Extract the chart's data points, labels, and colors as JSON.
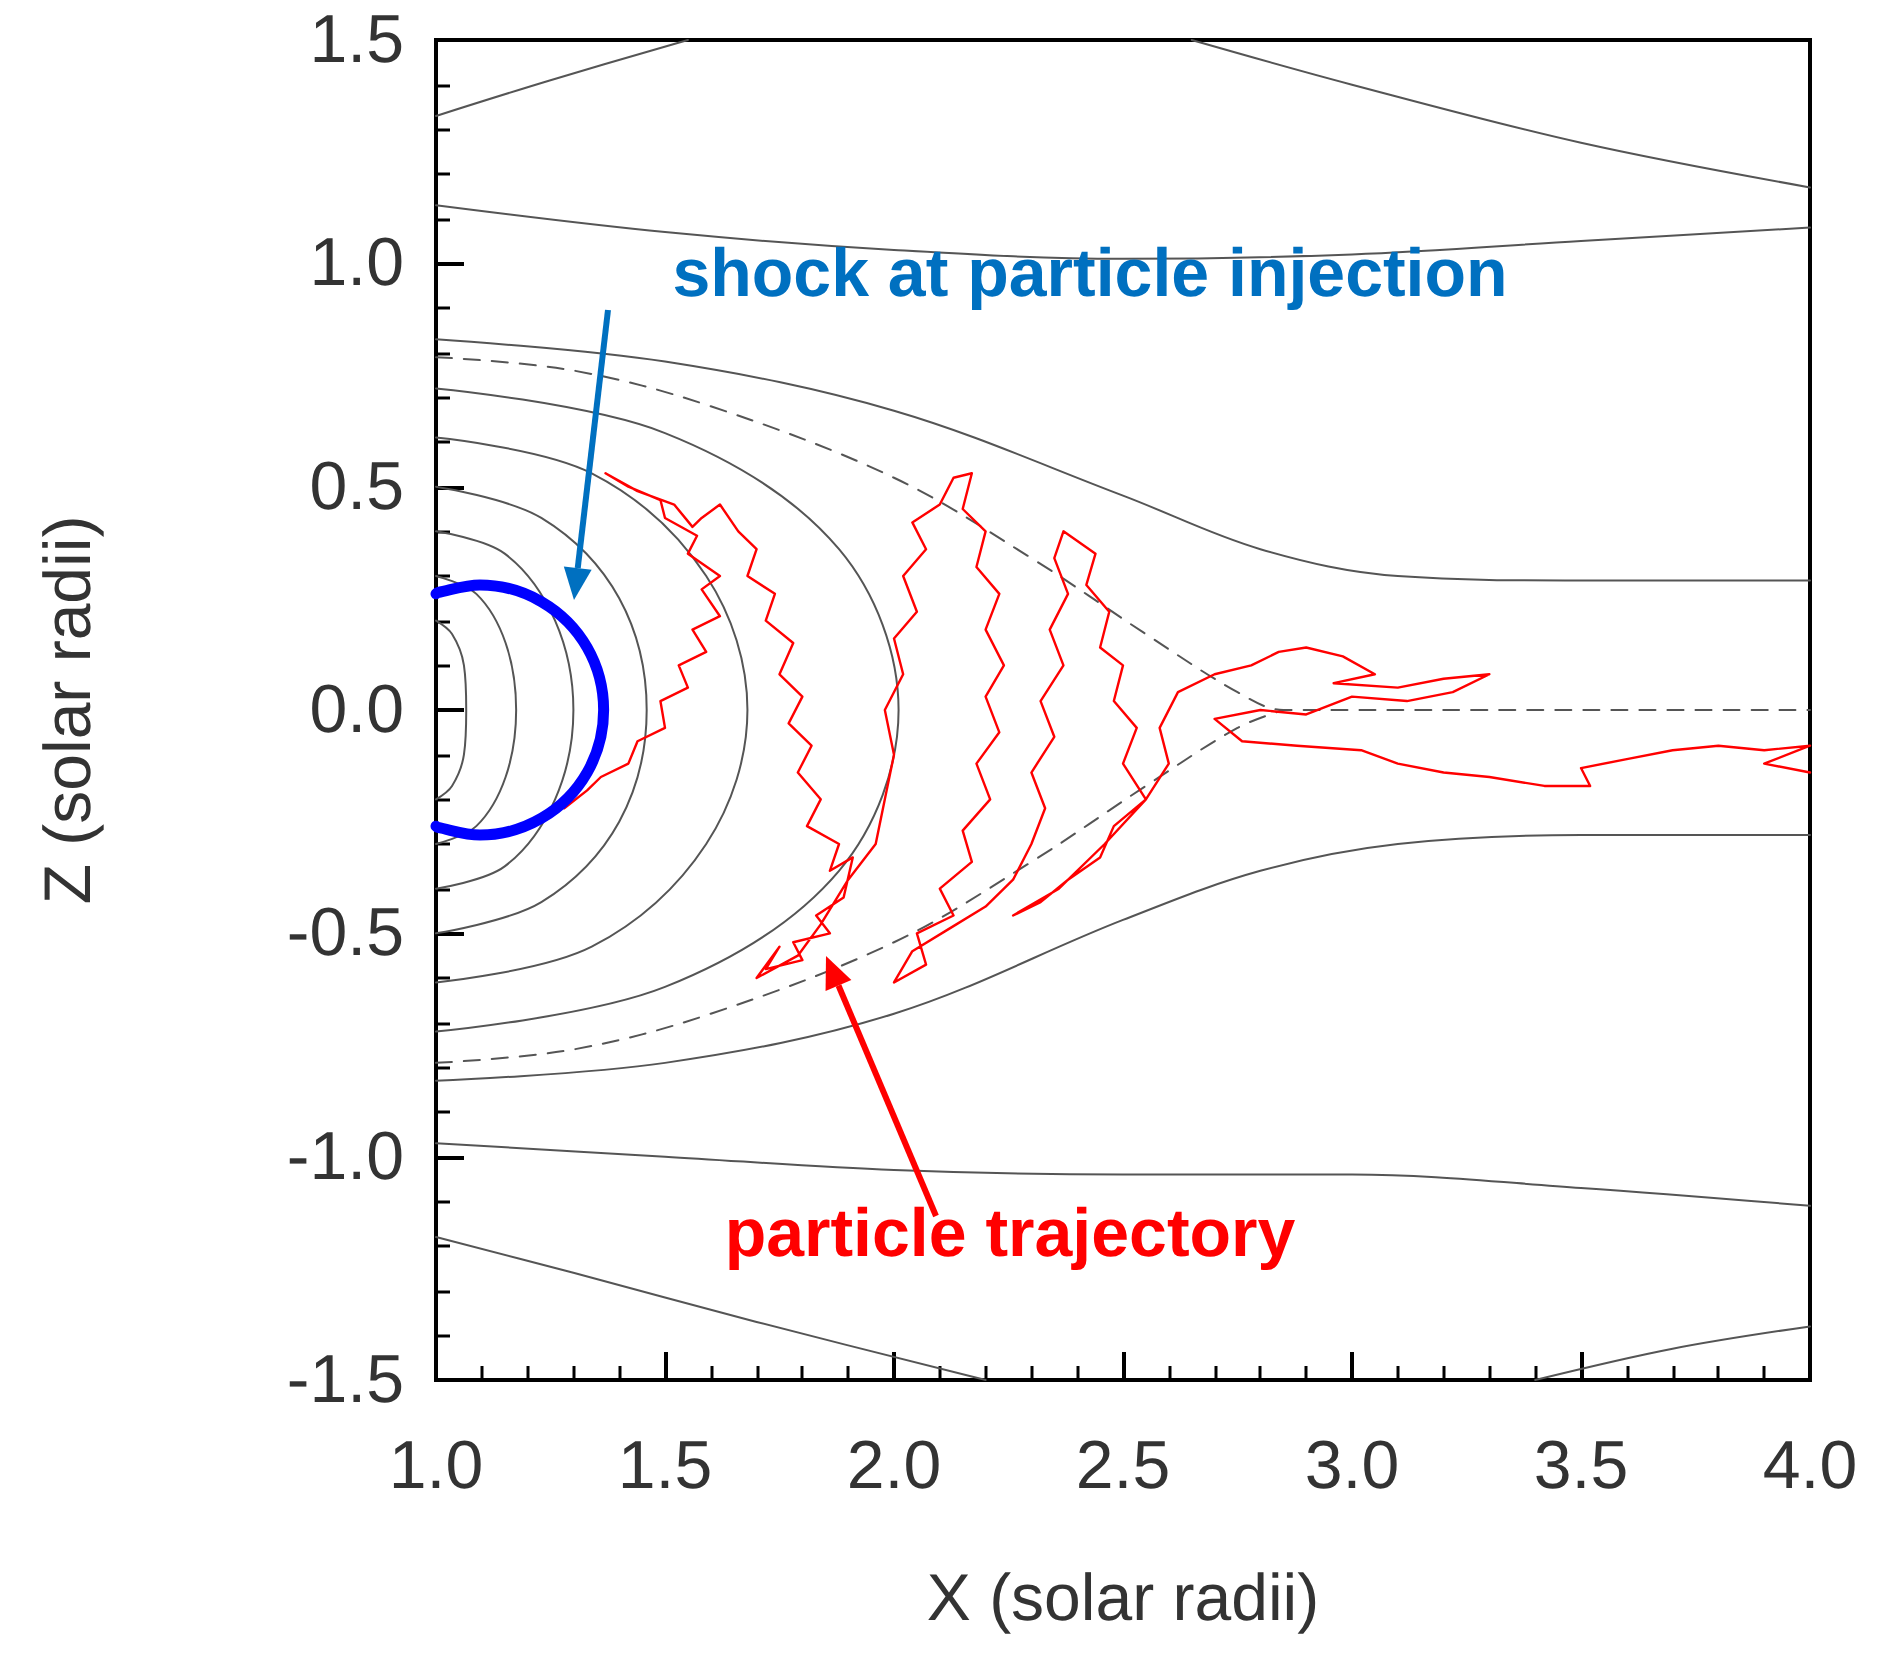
{
  "chart_data": {
    "type": "line",
    "xlabel": "X (solar radii)",
    "ylabel": "Z (solar radii)",
    "marker": "none",
    "xlim": [
      1.0,
      4.0
    ],
    "xticks": [
      {
        "value": 1.0,
        "label": "1.0"
      },
      {
        "value": 1.5,
        "label": "1.5"
      },
      {
        "value": 2.0,
        "label": "2.0"
      },
      {
        "value": 2.5,
        "label": "2.5"
      },
      {
        "value": 3.0,
        "label": "3.0"
      },
      {
        "value": 3.5,
        "label": "3.5"
      },
      {
        "value": 4.0,
        "label": "4.0"
      }
    ],
    "ylim": [
      -1.5,
      1.5
    ],
    "yticks": [
      {
        "value": -1.5,
        "label": "-1.5"
      },
      {
        "value": -1.0,
        "label": "-1.0"
      },
      {
        "value": -0.5,
        "label": "-0.5"
      },
      {
        "value": 0.0,
        "label": "0.0"
      },
      {
        "value": 0.5,
        "label": "0.5"
      },
      {
        "value": 1.0,
        "label": "1.0"
      },
      {
        "value": 1.5,
        "label": "1.5"
      }
    ],
    "annotations": [
      "shock at particle injection",
      "particle trajectory"
    ],
    "series": [
      {
        "color": "#555555",
        "line_style": "solid",
        "x": [
          1,
          1.035,
          1.061,
          1.066,
          1.061,
          1.035,
          1
        ],
        "values": [
          0.2,
          0.17,
          0.1,
          0,
          -0.1,
          -0.17,
          -0.2
        ]
      },
      {
        "color": "#555555",
        "line_style": "solid",
        "x": [
          1,
          1.088,
          1.152,
          1.175,
          1.152,
          1.088,
          1
        ],
        "values": [
          0.3,
          0.26,
          0.15,
          0,
          -0.15,
          -0.26,
          -0.3
        ]
      },
      {
        "color": "#555555",
        "line_style": "solid",
        "x": [
          1,
          1.15,
          1.26,
          1.3,
          1.26,
          1.15,
          1
        ],
        "values": [
          0.4,
          0.35,
          0.2,
          0,
          -0.2,
          -0.35,
          -0.4
        ]
      },
      {
        "color": "#555555",
        "line_style": "solid",
        "x": [
          1,
          1.23,
          1.4,
          1.46,
          1.4,
          1.23,
          1
        ],
        "values": [
          0.5,
          0.43,
          0.25,
          0,
          -0.25,
          -0.43,
          -0.5
        ]
      },
      {
        "color": "#555555",
        "line_style": "solid",
        "x": [
          1,
          1.34,
          1.59,
          1.68,
          1.59,
          1.34,
          1
        ],
        "values": [
          0.61,
          0.53,
          0.3,
          0,
          -0.3,
          -0.53,
          -0.61
        ]
      },
      {
        "color": "#555555",
        "line_style": "solid",
        "x": [
          1,
          1.5,
          1.88,
          2.01,
          1.88,
          1.5,
          1
        ],
        "values": [
          0.72,
          0.62,
          0.36,
          0,
          -0.36,
          -0.62,
          -0.72
        ]
      },
      {
        "color": "#555555",
        "line_style": "dashed",
        "x": [
          1,
          1.3,
          1.6,
          2.0,
          2.3,
          2.55,
          2.75,
          2.85,
          3.3,
          4.0
        ],
        "values": [
          0.79,
          0.76,
          0.68,
          0.52,
          0.34,
          0.17,
          0.04,
          0,
          0,
          0
        ]
      },
      {
        "color": "#555555",
        "line_style": "dashed",
        "x": [
          1,
          1.3,
          1.6,
          2.0,
          2.3,
          2.55,
          2.75,
          2.85
        ],
        "values": [
          -0.79,
          -0.76,
          -0.68,
          -0.52,
          -0.34,
          -0.17,
          -0.04,
          0
        ]
      },
      {
        "color": "#555555",
        "line_style": "solid",
        "x": [
          1,
          1.5,
          2.0,
          2.5,
          2.8,
          3.1,
          3.5,
          4.0
        ],
        "values": [
          0.83,
          0.78,
          0.67,
          0.48,
          0.36,
          0.3,
          0.29,
          0.29
        ]
      },
      {
        "color": "#555555",
        "line_style": "solid",
        "x": [
          1,
          1.5,
          2.0,
          2.5,
          2.8,
          3.1,
          3.5,
          4.0
        ],
        "values": [
          -0.83,
          -0.79,
          -0.68,
          -0.47,
          -0.36,
          -0.3,
          -0.28,
          -0.28
        ]
      },
      {
        "color": "#555555",
        "line_style": "solid",
        "x": [
          1,
          1.5,
          2.0,
          2.5,
          3.0,
          3.5,
          4.0
        ],
        "values": [
          1.13,
          1.07,
          1.03,
          1.01,
          1.02,
          1.05,
          1.08
        ]
      },
      {
        "color": "#555555",
        "line_style": "solid",
        "x": [
          1,
          1.5,
          2.0,
          2.5,
          3.0,
          3.5,
          4.0
        ],
        "values": [
          -0.97,
          -1.0,
          -1.03,
          -1.04,
          -1.04,
          -1.07,
          -1.11
        ]
      },
      {
        "color": "#555555",
        "line_style": "solid",
        "x": [
          1,
          1.25,
          1.55
        ],
        "values": [
          1.33,
          1.41,
          1.5
        ]
      },
      {
        "color": "#555555",
        "line_style": "solid",
        "x": [
          2.65,
          3.0,
          3.5,
          4.0
        ],
        "values": [
          1.5,
          1.4,
          1.27,
          1.17
        ]
      },
      {
        "color": "#555555",
        "line_style": "solid",
        "x": [
          1,
          1.3,
          1.7,
          2.2
        ],
        "values": [
          -1.18,
          -1.26,
          -1.37,
          -1.5
        ]
      },
      {
        "color": "#555555",
        "line_style": "solid",
        "x": [
          3.4,
          3.7,
          4.0
        ],
        "values": [
          -1.5,
          -1.43,
          -1.38
        ]
      },
      {
        "color": "#ff0000",
        "line_style": "solid",
        "x": [
          1.28,
          1.33,
          1.36,
          1.42,
          1.44,
          1.5,
          1.49,
          1.55,
          1.53,
          1.59,
          1.56,
          1.62,
          1.58,
          1.62,
          1.55,
          1.57,
          1.5,
          1.49,
          1.42,
          1.37,
          1.44,
          1.52,
          1.56,
          1.58,
          1.62,
          1.66,
          1.7,
          1.68,
          1.74,
          1.72,
          1.78,
          1.75,
          1.8,
          1.77,
          1.82,
          1.79,
          1.84,
          1.81,
          1.88,
          1.86,
          1.91,
          1.89,
          1.83,
          1.86,
          1.78,
          1.8,
          1.72,
          1.75,
          1.7,
          1.79,
          1.84,
          1.9,
          1.96,
          1.98,
          2.0,
          1.98,
          2.02,
          2.0,
          2.05,
          2.02,
          2.07,
          2.04,
          2.1,
          2.13,
          2.17,
          2.15,
          2.2,
          2.18,
          2.23,
          2.2,
          2.24,
          2.2,
          2.23,
          2.18,
          2.21,
          2.15,
          2.17,
          2.1,
          2.13,
          2.05,
          2.07,
          2.0,
          2.04,
          2.12,
          2.2,
          2.26,
          2.3,
          2.33,
          2.3,
          2.35,
          2.32,
          2.37,
          2.34,
          2.38,
          2.35,
          2.37,
          2.44,
          2.42,
          2.47,
          2.45,
          2.5,
          2.48,
          2.53,
          2.5,
          2.55,
          2.48,
          2.45,
          2.38,
          2.32,
          2.26,
          2.36,
          2.46,
          2.55,
          2.6,
          2.58,
          2.62,
          2.7,
          2.78,
          2.84,
          2.9,
          2.98,
          3.05,
          2.96,
          3.1,
          3.2,
          3.3,
          3.22,
          3.12,
          3.0,
          2.9,
          2.8,
          2.7,
          2.76,
          2.88,
          3.02,
          3.1,
          3.2,
          3.3,
          3.42,
          3.52,
          3.5,
          3.6,
          3.7,
          3.8,
          3.9,
          4.0,
          3.9,
          4.0
        ],
        "values": [
          -0.22,
          -0.18,
          -0.15,
          -0.12,
          -0.07,
          -0.04,
          0.02,
          0.05,
          0.1,
          0.13,
          0.18,
          0.21,
          0.27,
          0.3,
          0.35,
          0.39,
          0.43,
          0.47,
          0.5,
          0.53,
          0.49,
          0.46,
          0.41,
          0.43,
          0.46,
          0.4,
          0.36,
          0.3,
          0.26,
          0.2,
          0.15,
          0.08,
          0.03,
          -0.03,
          -0.08,
          -0.14,
          -0.2,
          -0.26,
          -0.3,
          -0.36,
          -0.33,
          -0.42,
          -0.46,
          -0.5,
          -0.52,
          -0.56,
          -0.58,
          -0.53,
          -0.6,
          -0.55,
          -0.48,
          -0.38,
          -0.3,
          -0.2,
          -0.1,
          0.0,
          0.08,
          0.16,
          0.22,
          0.3,
          0.36,
          0.42,
          0.46,
          0.52,
          0.53,
          0.45,
          0.4,
          0.32,
          0.26,
          0.18,
          0.1,
          0.03,
          -0.05,
          -0.12,
          -0.2,
          -0.27,
          -0.34,
          -0.4,
          -0.46,
          -0.5,
          -0.57,
          -0.61,
          -0.54,
          -0.49,
          -0.44,
          -0.38,
          -0.3,
          -0.22,
          -0.14,
          -0.06,
          0.02,
          0.1,
          0.18,
          0.26,
          0.34,
          0.4,
          0.35,
          0.28,
          0.22,
          0.14,
          0.1,
          0.02,
          -0.04,
          -0.12,
          -0.2,
          -0.26,
          -0.33,
          -0.38,
          -0.43,
          -0.46,
          -0.4,
          -0.3,
          -0.2,
          -0.12,
          -0.04,
          0.04,
          0.08,
          0.1,
          0.13,
          0.14,
          0.12,
          0.08,
          0.06,
          0.05,
          0.07,
          0.08,
          0.04,
          0.02,
          0.03,
          -0.01,
          0.0,
          -0.02,
          -0.07,
          -0.08,
          -0.09,
          -0.12,
          -0.14,
          -0.15,
          -0.17,
          -0.17,
          -0.13,
          -0.11,
          -0.09,
          -0.08,
          -0.09,
          -0.08,
          -0.12,
          -0.14
        ]
      },
      {
        "color": "#0000ff",
        "line_style": "solid",
        "x": [
          1.0,
          1.004,
          1.096,
          1.231,
          1.33,
          1.366,
          1.33,
          1.231,
          1.096,
          1.004,
          1.0
        ],
        "values": [
          0.26,
          0.263,
          0.28,
          0.242,
          0.14,
          0,
          -0.14,
          -0.242,
          -0.28,
          -0.263,
          -0.26
        ]
      }
    ]
  }
}
